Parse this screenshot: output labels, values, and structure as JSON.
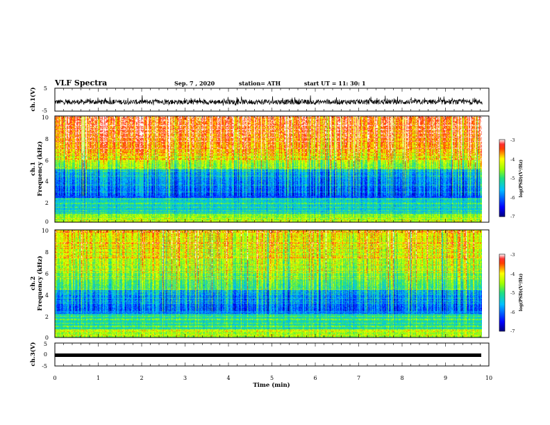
{
  "header": {
    "title": "VLF Spectra",
    "date": "Sep. 7 , 2020",
    "station": "station= ATH",
    "start": "start UT =  11: 30: 1"
  },
  "colors": {
    "frame": "#000000",
    "background": "#ffffff"
  },
  "chart_data": [
    {
      "type": "line",
      "panel": "ch1-waveform",
      "ylabel": "ch.1(V)",
      "ylim": [
        -5,
        5
      ],
      "yticks": [
        "5",
        "-5"
      ],
      "xlim": [
        0,
        9.85
      ],
      "series": [
        {
          "values_mean": -1,
          "values_range": [
            -3,
            1
          ]
        }
      ]
    },
    {
      "type": "heatmap",
      "panel": "ch1-spectrogram",
      "ylabel_line1": "ch.1",
      "ylabel_line2": "Frequency (kHz)",
      "ylim": [
        0,
        10
      ],
      "yticks": [
        "0",
        "2",
        "4",
        "6",
        "8",
        "10"
      ],
      "xlim": [
        0,
        9.85
      ],
      "colorbar": {
        "label": "log(PSD)(V²/Hz)",
        "range": [
          -7,
          -3
        ],
        "ticks": [
          "-3",
          "-4",
          "-5",
          "-6",
          "-7"
        ]
      }
    },
    {
      "type": "heatmap",
      "panel": "ch2-spectrogram",
      "ylabel_line1": "ch.2",
      "ylabel_line2": "Frequency (kHz)",
      "ylim": [
        0,
        10
      ],
      "yticks": [
        "0",
        "2",
        "4",
        "6",
        "8",
        "10"
      ],
      "xlim": [
        0,
        9.85
      ],
      "colorbar": {
        "label": "log(PSD)(V²/Hz)",
        "range": [
          -7,
          -3
        ],
        "ticks": [
          "-3",
          "-4",
          "-5",
          "-6",
          "-7"
        ]
      }
    },
    {
      "type": "line",
      "panel": "ch3-waveform",
      "ylabel": "ch.3(V)",
      "ylim": [
        -5,
        5
      ],
      "yticks": [
        "5",
        "0",
        "-5"
      ],
      "xlim": [
        0,
        9.85
      ],
      "series": [
        {
          "values_mean": -1,
          "values_range": [
            -1.3,
            -0.7
          ]
        }
      ]
    }
  ],
  "xaxis": {
    "label": "Time (min)",
    "range": [
      0,
      10
    ],
    "ticks": [
      "0",
      "1",
      "2",
      "3",
      "4",
      "5",
      "6",
      "7",
      "8",
      "9",
      "10"
    ]
  }
}
